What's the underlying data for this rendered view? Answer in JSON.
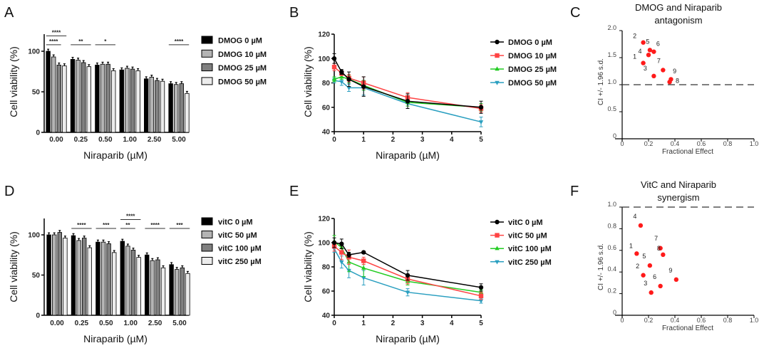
{
  "chart_data": [
    {
      "panel": "A",
      "type": "bar",
      "xlabel": "Niraparib (µM)",
      "ylabel": "Cell viability (%)",
      "ylim": [
        0,
        120
      ],
      "yticks": [
        "0",
        "50",
        "100"
      ],
      "categories": [
        "0.00",
        "0.25",
        "0.50",
        "1.00",
        "2.50",
        "5.00"
      ],
      "series": [
        {
          "name": "DMOG 0 µM",
          "color": "#000000",
          "values": [
            100,
            90,
            83,
            77,
            66,
            60
          ]
        },
        {
          "name": "DMOG 10 µM",
          "color": "#b4b4b4",
          "values": [
            93,
            89,
            84,
            79,
            68,
            59
          ]
        },
        {
          "name": "DMOG 25 µM",
          "color": "#808080",
          "values": [
            83,
            86,
            84,
            78,
            64,
            60
          ]
        },
        {
          "name": "DMOG 50 µM",
          "color": "#ececec",
          "values": [
            82,
            81,
            76,
            76,
            63,
            48
          ]
        }
      ],
      "significance": [
        {
          "group": 0,
          "from": 0,
          "to": 2,
          "tier": 0,
          "label": "****"
        },
        {
          "group": 0,
          "from": 0,
          "to": 3,
          "tier": 1,
          "label": "****"
        },
        {
          "group": 1,
          "from": 0,
          "to": 3,
          "tier": 0,
          "label": "**"
        },
        {
          "group": 2,
          "from": 0,
          "to": 3,
          "tier": 0,
          "label": "*"
        },
        {
          "group": 5,
          "from": 0,
          "to": 3,
          "tier": 0,
          "label": "****"
        }
      ]
    },
    {
      "panel": "B",
      "type": "line",
      "xlabel": "Niraparib (µM)",
      "ylabel": "Cell viability (%)",
      "xlim": [
        0,
        5
      ],
      "ylim": [
        40,
        120
      ],
      "xticks": [
        "0",
        "1",
        "2",
        "3",
        "4",
        "5"
      ],
      "yticks": [
        "40",
        "60",
        "80",
        "100",
        "120"
      ],
      "x": [
        0,
        0.25,
        0.5,
        1,
        2.5,
        5
      ],
      "series": [
        {
          "name": "DMOG 0 µM",
          "color": "#000000",
          "marker": "circle",
          "values": [
            100,
            89,
            83,
            77,
            65,
            60
          ],
          "err": [
            4,
            2,
            6,
            8,
            6,
            5
          ]
        },
        {
          "name": "DMOG 10 µM",
          "color": "#ff4444",
          "marker": "square",
          "values": [
            93,
            88,
            84,
            80,
            68,
            59
          ],
          "err": [
            3,
            2,
            3,
            5,
            4,
            3
          ]
        },
        {
          "name": "DMOG 25 µM",
          "color": "#22cc22",
          "marker": "triangle-up",
          "values": [
            83,
            85,
            83,
            78,
            64,
            60
          ],
          "err": [
            2,
            2,
            3,
            4,
            3,
            3
          ]
        },
        {
          "name": "DMOG 50 µM",
          "color": "#2a9fc0",
          "marker": "triangle-down",
          "values": [
            82,
            81,
            76,
            76,
            63,
            48
          ],
          "err": [
            2,
            3,
            3,
            6,
            4,
            4
          ]
        }
      ]
    },
    {
      "panel": "C",
      "type": "scatter",
      "title": [
        "DMOG and Niraparib",
        "antagonism"
      ],
      "xlabel": "Fractional Effect",
      "ylabel": "CI +/- 1.96 s.d.",
      "xlim": [
        0,
        1
      ],
      "ylim": [
        0,
        2
      ],
      "xticks": [
        "0",
        "0.2",
        "0.4",
        "0.6",
        "0.8",
        "1.0"
      ],
      "yticks": [
        "0",
        "0.5",
        "1.0",
        "1.5",
        "2.0"
      ],
      "reference_line": 1.0,
      "points": [
        {
          "label": "1",
          "x": 0.16,
          "y": 1.4
        },
        {
          "label": "2",
          "x": 0.16,
          "y": 1.78
        },
        {
          "label": "3",
          "x": 0.24,
          "y": 1.16
        },
        {
          "label": "4",
          "x": 0.2,
          "y": 1.55
        },
        {
          "label": "5",
          "x": 0.21,
          "y": 1.64
        },
        {
          "label": "6",
          "x": 0.24,
          "y": 1.61
        },
        {
          "label": "7",
          "x": 0.31,
          "y": 1.27
        },
        {
          "label": "8",
          "x": 0.37,
          "y": 1.1
        },
        {
          "label": "9",
          "x": 0.36,
          "y": 1.05
        }
      ]
    },
    {
      "panel": "D",
      "type": "bar",
      "xlabel": "Niraparib (µM)",
      "ylabel": "Cell viability (%)",
      "ylim": [
        0,
        120
      ],
      "yticks": [
        "0",
        "50",
        "100"
      ],
      "categories": [
        "0.00",
        "0.25",
        "0.50",
        "1.00",
        "2.50",
        "5.00"
      ],
      "series": [
        {
          "name": "vitC 0 µM",
          "color": "#000000",
          "values": [
            100,
            99,
            91,
            92,
            75,
            63
          ]
        },
        {
          "name": "vitC 50 µM",
          "color": "#b4b4b4",
          "values": [
            100,
            93,
            91,
            86,
            68,
            57
          ]
        },
        {
          "name": "vitC 100 µM",
          "color": "#808080",
          "values": [
            103,
            96,
            89,
            81,
            69,
            59
          ]
        },
        {
          "name": "vitC 250 µM",
          "color": "#ececec",
          "values": [
            96,
            84,
            78,
            72,
            59,
            52
          ]
        }
      ],
      "significance": [
        {
          "group": 1,
          "from": 0,
          "to": 3,
          "tier": 0,
          "label": "****"
        },
        {
          "group": 2,
          "from": 0,
          "to": 3,
          "tier": 0,
          "label": "***"
        },
        {
          "group": 3,
          "from": 0,
          "to": 2,
          "tier": 0,
          "label": "**"
        },
        {
          "group": 3,
          "from": 0,
          "to": 3,
          "tier": 1,
          "label": "****"
        },
        {
          "group": 4,
          "from": 0,
          "to": 3,
          "tier": 0,
          "label": "****"
        },
        {
          "group": 5,
          "from": 0,
          "to": 3,
          "tier": 0,
          "label": "***"
        }
      ]
    },
    {
      "panel": "E",
      "type": "line",
      "xlabel": "Niraparib (µM)",
      "ylabel": "Cell viability (%)",
      "xlim": [
        0,
        5
      ],
      "ylim": [
        40,
        120
      ],
      "xticks": [
        "0",
        "1",
        "2",
        "3",
        "4",
        "5"
      ],
      "yticks": [
        "40",
        "60",
        "80",
        "100",
        "120"
      ],
      "x": [
        0,
        0.25,
        0.5,
        1,
        2.5,
        5
      ],
      "series": [
        {
          "name": "vitC 0 µM",
          "color": "#000000",
          "marker": "circle",
          "values": [
            100,
            99,
            90,
            92,
            73,
            63
          ],
          "err": [
            4,
            4,
            2,
            1,
            4,
            3
          ]
        },
        {
          "name": "vitC 50 µM",
          "color": "#ff4444",
          "marker": "square",
          "values": [
            97,
            92,
            88,
            85,
            70,
            56
          ],
          "err": [
            4,
            6,
            6,
            3,
            4,
            3
          ]
        },
        {
          "name": "vitC 100 µM",
          "color": "#22cc22",
          "marker": "triangle-up",
          "values": [
            101,
            96,
            84,
            79,
            68,
            59
          ],
          "err": [
            5,
            3,
            8,
            7,
            3,
            2
          ]
        },
        {
          "name": "vitC 250 µM",
          "color": "#2a9fc0",
          "marker": "triangle-down",
          "values": [
            95,
            84,
            77,
            71,
            59,
            52
          ],
          "err": [
            3,
            5,
            6,
            6,
            3,
            2
          ]
        }
      ]
    },
    {
      "panel": "F",
      "type": "scatter",
      "title": [
        "VitC and Niraparib",
        "synergism"
      ],
      "xlabel": "Fractional Effect",
      "ylabel": "CI +/- 1.96 s.d.",
      "xlim": [
        0,
        1
      ],
      "ylim": [
        0,
        1
      ],
      "xticks": [
        "0",
        "0.2",
        "0.4",
        "0.6",
        "0.8",
        "1.0"
      ],
      "yticks": [
        "0",
        "0.2",
        "0.4",
        "0.6",
        "0.8",
        "1.0"
      ],
      "reference_line": 1.0,
      "points": [
        {
          "label": "1",
          "x": 0.11,
          "y": 0.57
        },
        {
          "label": "2",
          "x": 0.16,
          "y": 0.37
        },
        {
          "label": "3",
          "x": 0.22,
          "y": 0.21
        },
        {
          "label": "4",
          "x": 0.14,
          "y": 0.83
        },
        {
          "label": "5",
          "x": 0.21,
          "y": 0.46
        },
        {
          "label": "6",
          "x": 0.29,
          "y": 0.27
        },
        {
          "label": "7",
          "x": 0.29,
          "y": 0.62
        },
        {
          "label": "8",
          "x": 0.31,
          "y": 0.56
        },
        {
          "label": "9",
          "x": 0.41,
          "y": 0.33
        }
      ]
    }
  ]
}
